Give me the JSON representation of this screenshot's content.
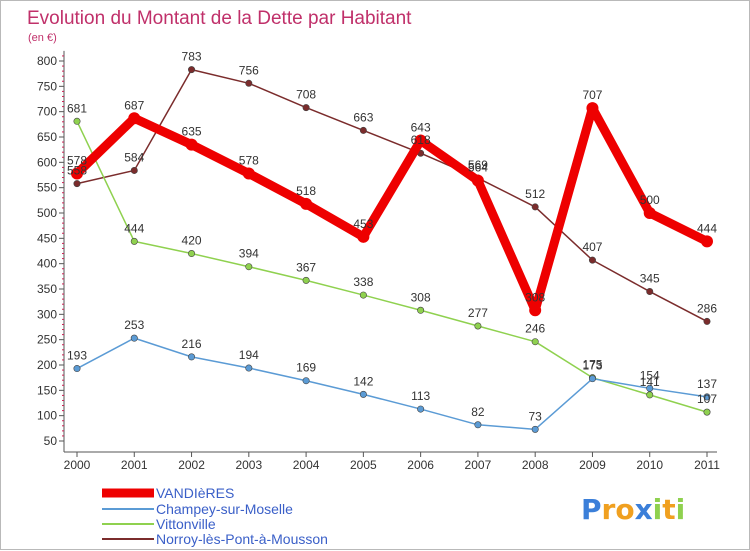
{
  "chart_data": {
    "type": "line",
    "title": "Evolution du Montant de la Dette par Habitant",
    "subtitle": "(en €)",
    "categories": [
      "2000",
      "2001",
      "2002",
      "2003",
      "2004",
      "2005",
      "2006",
      "2007",
      "2008",
      "2009",
      "2010",
      "2011"
    ],
    "yticks": [
      50,
      100,
      150,
      200,
      250,
      300,
      350,
      400,
      450,
      500,
      550,
      600,
      650,
      700,
      750,
      800
    ],
    "ylim": [
      50,
      820
    ],
    "grid": false,
    "legend_position": "bottom-left",
    "series": [
      {
        "name": "VANDIèRES",
        "color": "#ee0000",
        "width": 9,
        "values": [
          578,
          687,
          635,
          578,
          518,
          453,
          643,
          564,
          308,
          707,
          500,
          444
        ]
      },
      {
        "name": "Champey-sur-Moselle",
        "color": "#5b9bd5",
        "width": 1.5,
        "values": [
          193,
          253,
          216,
          194,
          169,
          142,
          113,
          82,
          73,
          173,
          154,
          137
        ]
      },
      {
        "name": "Vittonville",
        "color": "#8fd14f",
        "width": 1.5,
        "values": [
          681,
          444,
          420,
          394,
          367,
          338,
          308,
          277,
          246,
          175,
          141,
          107
        ]
      },
      {
        "name": "Norroy-lès-Pont-à-Mousson",
        "color": "#7b2c2c",
        "width": 1.5,
        "values": [
          558,
          584,
          783,
          756,
          708,
          663,
          618,
          569,
          512,
          407,
          345,
          286
        ]
      }
    ]
  },
  "logo": {
    "letters": [
      "P",
      "r",
      "o",
      "x",
      "i",
      "t",
      "i"
    ],
    "colors": [
      "#3b7fd9",
      "#f0a020",
      "#f0a020",
      "#3b7fd9",
      "#8fd14f",
      "#f0a020",
      "#8fd14f"
    ]
  }
}
